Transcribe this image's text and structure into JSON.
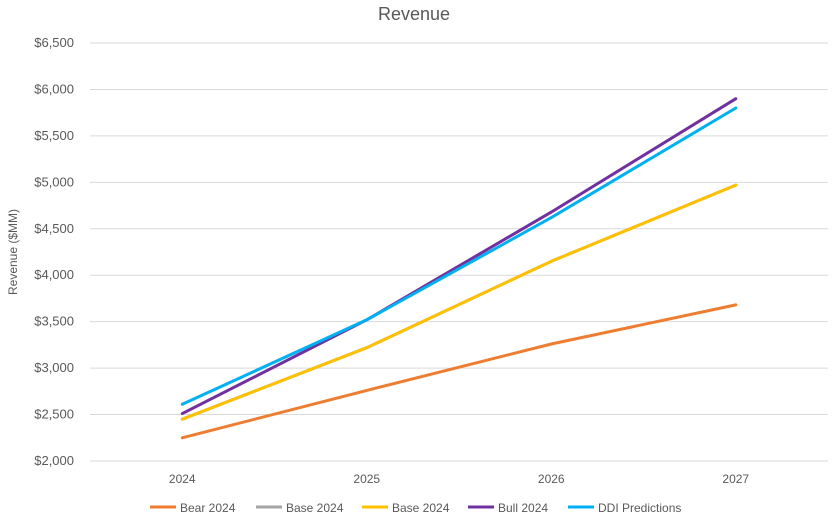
{
  "chart_data": {
    "type": "line",
    "title": "Revenue",
    "xlabel": "",
    "ylabel": "Revenue ($MM)",
    "categories": [
      "2024",
      "2025",
      "2026",
      "2027"
    ],
    "ylim": [
      2000,
      6500
    ],
    "yticks": [
      2000,
      2500,
      3000,
      3500,
      4000,
      4500,
      5000,
      5500,
      6000,
      6500
    ],
    "ytick_labels": [
      "$2,000",
      "$2,500",
      "$3,000",
      "$3,500",
      "$4,000",
      "$4,500",
      "$5,000",
      "$5,500",
      "$6,000",
      "$6,500"
    ],
    "grid": true,
    "legend_position": "bottom",
    "series": [
      {
        "name": "Bear 2024",
        "color": "#ED7D31",
        "values": [
          2250,
          2760,
          3260,
          3680
        ]
      },
      {
        "name": "Base 2024",
        "color": "#A5A5A5",
        "values": [
          2450,
          3220,
          4150,
          4970
        ]
      },
      {
        "name": "Base 2024",
        "color": "#FFC000",
        "values": [
          2450,
          3220,
          4150,
          4970
        ]
      },
      {
        "name": "Bull 2024",
        "color": "#7030A0",
        "values": [
          2510,
          3520,
          4680,
          5900
        ]
      },
      {
        "name": "DDI Predictions",
        "color": "#00B0F0",
        "values": [
          2610,
          3520,
          4620,
          5800
        ]
      }
    ]
  }
}
